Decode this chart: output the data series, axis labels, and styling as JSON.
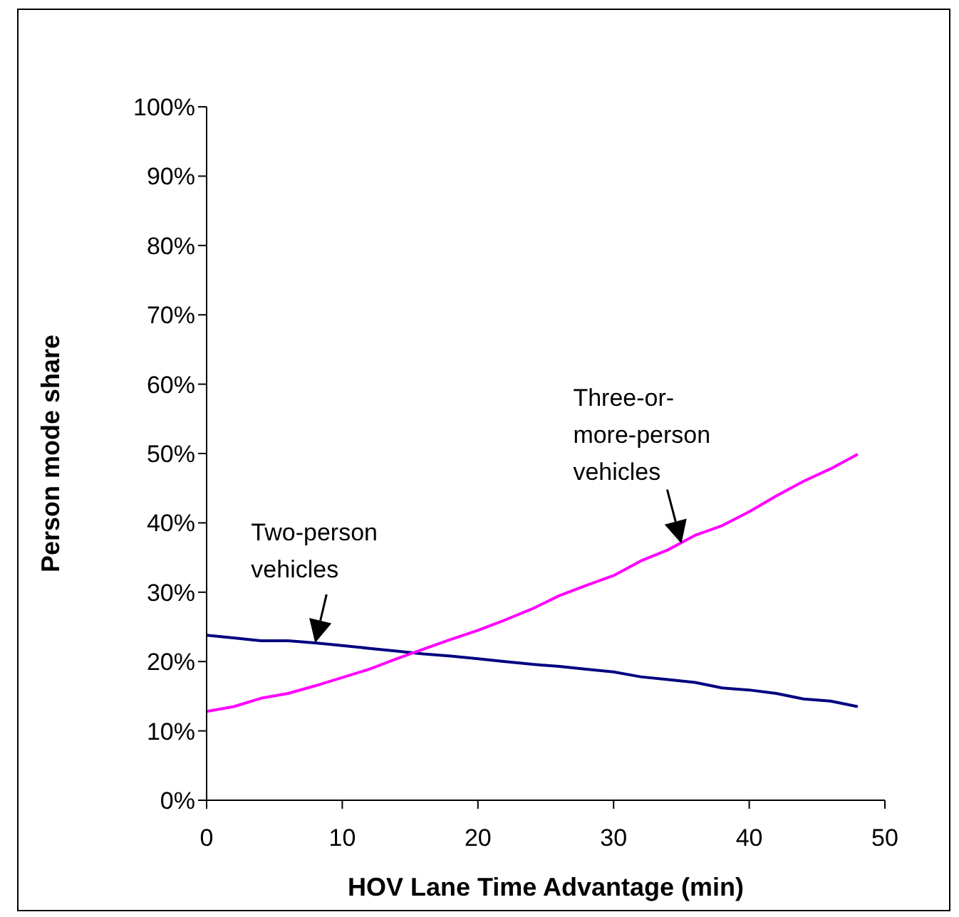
{
  "chart_data": {
    "type": "line",
    "xlabel": "HOV Lane Time Advantage (min)",
    "ylabel": "Person mode share",
    "x": [
      0,
      2,
      4,
      6,
      8,
      10,
      12,
      14,
      16,
      18,
      20,
      22,
      24,
      26,
      28,
      30,
      32,
      34,
      36,
      38,
      40,
      42,
      44,
      46,
      48
    ],
    "series": [
      {
        "color": "#000080",
        "values": [
          23.8,
          23.4,
          23.0,
          23.0,
          22.7,
          22.3,
          21.9,
          21.5,
          21.1,
          20.8,
          20.4,
          20.0,
          19.6,
          19.3,
          18.9,
          18.5,
          17.8,
          17.4,
          17.0,
          16.2,
          15.9,
          15.4,
          14.6,
          14.3,
          13.5
        ]
      },
      {
        "color": "#ff00ff",
        "values": [
          12.8,
          13.5,
          14.7,
          15.4,
          16.5,
          17.7,
          18.9,
          20.4,
          21.8,
          23.2,
          24.5,
          26.0,
          27.6,
          29.5,
          31.0,
          32.4,
          34.5,
          36.1,
          38.2,
          39.6,
          41.6,
          43.9,
          46.0,
          47.8,
          49.9
        ]
      }
    ],
    "xlim": [
      0,
      50
    ],
    "xticks": [
      0,
      10,
      20,
      30,
      40,
      50
    ],
    "ylim": [
      0,
      100
    ],
    "yticks": [
      {
        "value": 0,
        "label": "0%"
      },
      {
        "value": 10,
        "label": "10%"
      },
      {
        "value": 20,
        "label": "20%"
      },
      {
        "value": 30,
        "label": "30%"
      },
      {
        "value": 40,
        "label": "40%"
      },
      {
        "value": 50,
        "label": "50%"
      },
      {
        "value": 60,
        "label": "60%"
      },
      {
        "value": 70,
        "label": "70%"
      },
      {
        "value": 80,
        "label": "80%"
      },
      {
        "value": 90,
        "label": "90%"
      },
      {
        "value": 100,
        "label": "100%"
      }
    ],
    "marker": "none",
    "line_style": "solid",
    "annotations": [
      {
        "text": "Two-person vehicles",
        "x": 8,
        "y": 22.7
      },
      {
        "text": "Three-or-more-person vehicles",
        "x": 35,
        "y": 37
      }
    ]
  }
}
